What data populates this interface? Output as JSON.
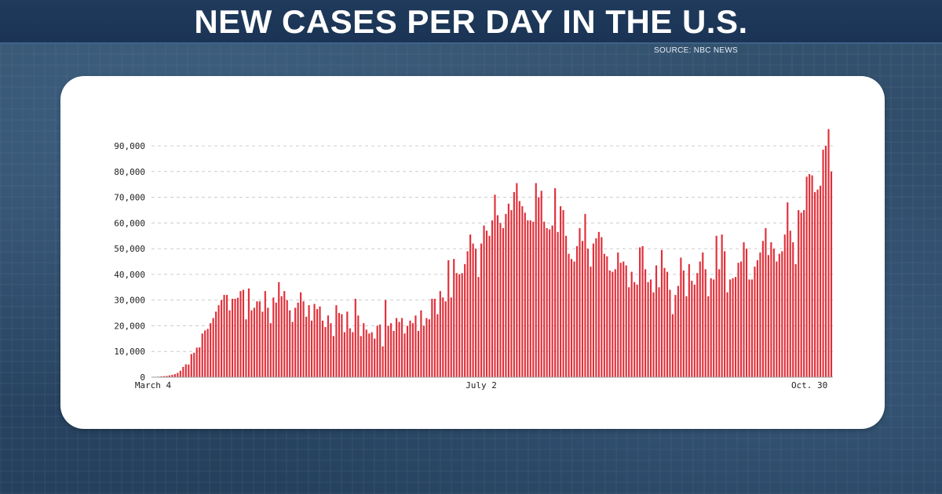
{
  "header": {
    "title": "NEW CASES PER DAY IN THE U.S.",
    "source": "SOURCE: NBC NEWS"
  },
  "colors": {
    "background": "#2b4866",
    "header_bar": "#1d3758",
    "card": "#ffffff",
    "bar": "#e0303a",
    "gridline": "#cccccc"
  },
  "chart_data": {
    "type": "bar",
    "title": "",
    "xlabel": "",
    "ylabel": "",
    "ylim": [
      0,
      96000
    ],
    "grid": true,
    "yticks": [
      0,
      10000,
      20000,
      30000,
      40000,
      50000,
      60000,
      70000,
      80000,
      90000
    ],
    "ytick_labels": [
      "0",
      "10,000",
      "20,000",
      "30,000",
      "40,000",
      "50,000",
      "60,000",
      "70,000",
      "80,000",
      "90,000"
    ],
    "xtick_labels": [
      {
        "label": "March 4",
        "index": 0
      },
      {
        "label": "July 2",
        "index": 120
      },
      {
        "label": "Oct. 30",
        "index": 240
      }
    ],
    "x_range": [
      "March 4",
      "Oct. 30"
    ],
    "series": [
      {
        "values": [
          100,
          150,
          200,
          300,
          400,
          500,
          700,
          900,
          1200,
          1700,
          2500,
          4000,
          5000,
          4900,
          9000,
          9500,
          11500,
          11600,
          17000,
          18200,
          18800,
          21000,
          23000,
          25500,
          28000,
          30000,
          32000,
          32000,
          26000,
          30500,
          30500,
          30900,
          33500,
          34000,
          22500,
          34500,
          26000,
          27000,
          29500,
          29500,
          25500,
          33500,
          27000,
          21000,
          31000,
          29000,
          37000,
          31500,
          33500,
          30000,
          26000,
          21500,
          27000,
          29000,
          33000,
          29500,
          23500,
          28000,
          22000,
          28500,
          26500,
          27500,
          22000,
          19500,
          24000,
          21000,
          16000,
          28000,
          25000,
          24500,
          17500,
          25500,
          19000,
          17500,
          30500,
          24000,
          16000,
          21000,
          18500,
          17000,
          17500,
          15000,
          20000,
          20500,
          12000,
          30000,
          20000,
          21000,
          18000,
          23000,
          21500,
          23000,
          17000,
          20000,
          22000,
          21000,
          24000,
          18000,
          26000,
          20000,
          23000,
          22500,
          30500,
          30500,
          24500,
          33500,
          31000,
          29500,
          45500,
          31000,
          46000,
          40500,
          40000,
          40500,
          44000,
          49000,
          55500,
          52000,
          50000,
          39000,
          52000,
          59000,
          57000,
          55000,
          61000,
          71000,
          63000,
          60000,
          58000,
          63500,
          67500,
          65000,
          72000,
          75500,
          68500,
          66500,
          64000,
          61000,
          61000,
          60500,
          75500,
          70000,
          72500,
          60500,
          58000,
          57500,
          59000,
          73500,
          56500,
          66500,
          65000,
          55000,
          48000,
          46000,
          45000,
          51000,
          58000,
          53000,
          63500,
          50000,
          43000,
          52000,
          54000,
          56500,
          54500,
          48000,
          47000,
          41500,
          41000,
          42000,
          48500,
          44500,
          45000,
          43500,
          35000,
          41000,
          37000,
          36000,
          50500,
          51000,
          42000,
          37000,
          38000,
          33000,
          43500,
          35000,
          49500,
          42500,
          41000,
          34000,
          24500,
          32000,
          35500,
          46500,
          41500,
          31500,
          44000,
          37500,
          36000,
          40500,
          45000,
          48500,
          42000,
          31500,
          38500,
          38000,
          55000,
          42000,
          55500,
          49000,
          33000,
          38000,
          38500,
          39000,
          44500,
          45000,
          52500,
          50000,
          38000,
          38000,
          43000,
          45500,
          48500,
          53000,
          58000,
          47500,
          52500,
          50000,
          45000,
          48000,
          49000,
          55500,
          68000,
          57000,
          52500,
          44000,
          65000,
          64000,
          65000,
          78000,
          79000,
          78500,
          72000,
          73000,
          74500,
          88500,
          90000,
          96500,
          80000
        ]
      }
    ]
  }
}
